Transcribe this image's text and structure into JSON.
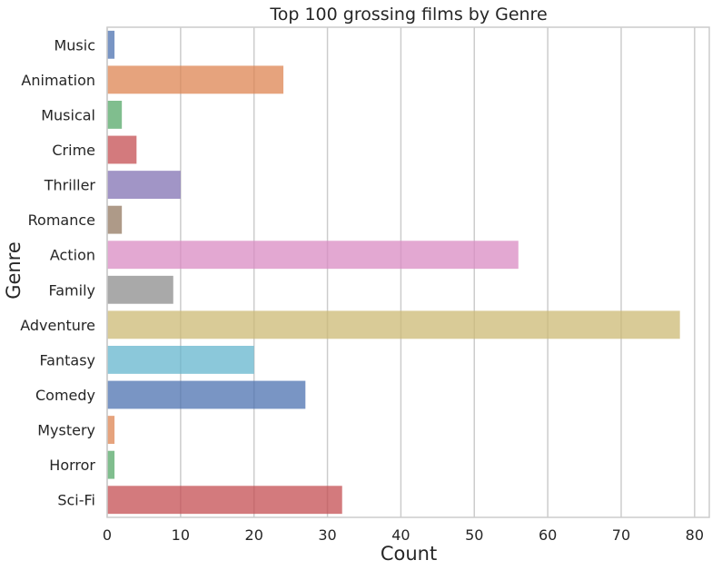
{
  "chart_data": {
    "type": "bar",
    "orientation": "horizontal",
    "title": "Top 100 grossing films by Genre",
    "xlabel": "Count",
    "ylabel": "Genre",
    "xlim": [
      0,
      82
    ],
    "xticks": [
      0,
      10,
      20,
      30,
      40,
      50,
      60,
      70,
      80
    ],
    "grid": "vertical",
    "categories": [
      "Music",
      "Animation",
      "Musical",
      "Crime",
      "Thriller",
      "Romance",
      "Action",
      "Family",
      "Adventure",
      "Fantasy",
      "Comedy",
      "Mystery",
      "Horror",
      "Sci-Fi"
    ],
    "values": [
      1,
      24,
      2,
      4,
      10,
      2,
      56,
      9,
      78,
      20,
      27,
      1,
      1,
      32
    ],
    "colors": [
      "#4c72b0",
      "#dd8452",
      "#55a868",
      "#c44e52",
      "#8172b3",
      "#937860",
      "#da8bc3",
      "#8c8c8c",
      "#ccb974",
      "#64b5cd",
      "#4c72b0",
      "#dd8452",
      "#55a868",
      "#c44e52"
    ]
  }
}
